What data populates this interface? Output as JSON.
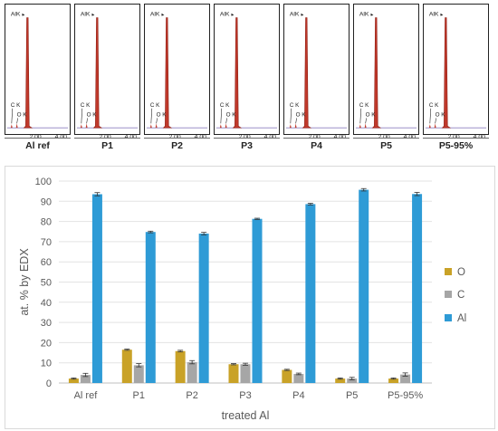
{
  "spectra": {
    "peak_labels": {
      "al": "AlK",
      "c": "C K",
      "o": "O K"
    },
    "axis_ticks": [
      "2.00",
      "4.00"
    ],
    "panels": [
      {
        "label": "Al ref"
      },
      {
        "label": "P1"
      },
      {
        "label": "P2"
      },
      {
        "label": "P3"
      },
      {
        "label": "P4"
      },
      {
        "label": "P5"
      },
      {
        "label": "P5-95%"
      }
    ],
    "colors": {
      "peak": "#c0392b",
      "axis": "#8e7fc0"
    }
  },
  "chart_data": {
    "type": "bar",
    "categories": [
      "Al ref",
      "P1",
      "P2",
      "P3",
      "P4",
      "P5",
      "P5-95%"
    ],
    "series": [
      {
        "name": "O",
        "color": "#c9a227",
        "values": [
          2.2,
          16.5,
          15.8,
          9.3,
          6.5,
          2.2,
          2.2
        ],
        "errors": [
          0.3,
          0.3,
          0.4,
          0.3,
          0.3,
          0.3,
          0.3
        ]
      },
      {
        "name": "C",
        "color": "#a6a6a6",
        "values": [
          4.0,
          8.8,
          10.3,
          9.3,
          4.5,
          2.2,
          4.2
        ],
        "errors": [
          0.8,
          0.8,
          0.8,
          0.5,
          0.4,
          0.6,
          0.8
        ]
      },
      {
        "name": "Al",
        "color": "#2e9bd6",
        "values": [
          93.5,
          74.8,
          74.0,
          81.3,
          88.6,
          95.7,
          93.6
        ],
        "errors": [
          0.8,
          0.4,
          0.6,
          0.3,
          0.4,
          0.6,
          0.8
        ]
      }
    ],
    "ylabel": "at. % by EDX",
    "xlabel": "treated Al",
    "ylim": [
      0,
      100
    ],
    "yticks": [
      "0",
      "10",
      "20",
      "30",
      "40",
      "50",
      "60",
      "70",
      "80",
      "90",
      "100"
    ],
    "legend_position": "right"
  }
}
